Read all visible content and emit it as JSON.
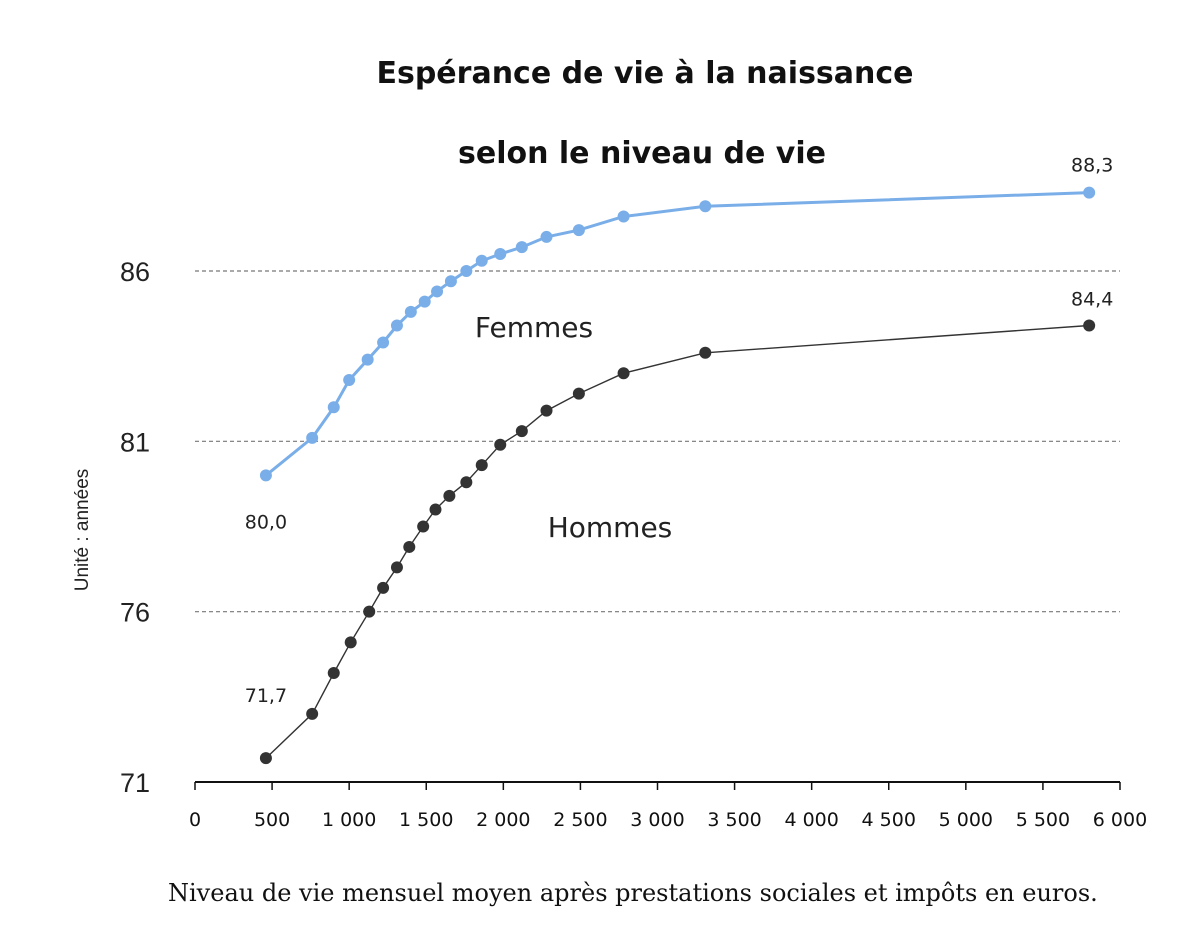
{
  "chart_data": {
    "type": "line",
    "title_line1": "Espérance de vie à la naissance",
    "title_line2": "selon le niveau de vie",
    "ylabel": "Unité : années",
    "xlabel": "Niveau de vie mensuel moyen après prestations sociales et impôts en euros.",
    "xlim": [
      0,
      6000
    ],
    "ylim": [
      71,
      86
    ],
    "x_ticks": [
      0,
      500,
      1000,
      1500,
      2000,
      2500,
      3000,
      3500,
      4000,
      4500,
      5000,
      5500,
      6000
    ],
    "x_tick_labels": [
      "0",
      "500",
      "1 000",
      "1 500",
      "2 000",
      "2 500",
      "3 000",
      "3 500",
      "4 000",
      "4 500",
      "5 000",
      "5 500",
      "6 000"
    ],
    "y_ticks": [
      71,
      76,
      81,
      86
    ],
    "y_tick_labels": [
      "71",
      "76",
      "81",
      "86"
    ],
    "grid": "horizontal dashed",
    "series": [
      {
        "name": "Femmes",
        "color": "#7aaee8",
        "x": [
          460,
          760,
          900,
          1000,
          1120,
          1220,
          1310,
          1400,
          1490,
          1570,
          1660,
          1760,
          1860,
          1980,
          2120,
          2280,
          2490,
          2780,
          3310,
          5800
        ],
        "y": [
          80.0,
          81.1,
          82.0,
          82.8,
          83.4,
          83.9,
          84.4,
          84.8,
          85.1,
          85.4,
          85.7,
          86.0,
          86.3,
          86.5,
          86.7,
          87.0,
          87.2,
          87.6,
          87.9,
          88.3
        ],
        "labels": [
          {
            "index": 0,
            "text": "80,0"
          },
          {
            "index": 19,
            "text": "88,3"
          }
        ]
      },
      {
        "name": "Hommes",
        "color": "#333333",
        "x": [
          460,
          760,
          900,
          1010,
          1130,
          1220,
          1310,
          1390,
          1480,
          1560,
          1650,
          1760,
          1860,
          1980,
          2120,
          2280,
          2490,
          2780,
          3310,
          5800
        ],
        "y": [
          71.7,
          73.0,
          74.2,
          75.1,
          76.0,
          76.7,
          77.3,
          77.9,
          78.5,
          79.0,
          79.4,
          79.8,
          80.3,
          80.9,
          81.3,
          81.9,
          82.4,
          83.0,
          83.6,
          84.4
        ],
        "labels": [
          {
            "index": 0,
            "text": "71,7"
          },
          {
            "index": 19,
            "text": "84,4"
          }
        ]
      }
    ]
  }
}
